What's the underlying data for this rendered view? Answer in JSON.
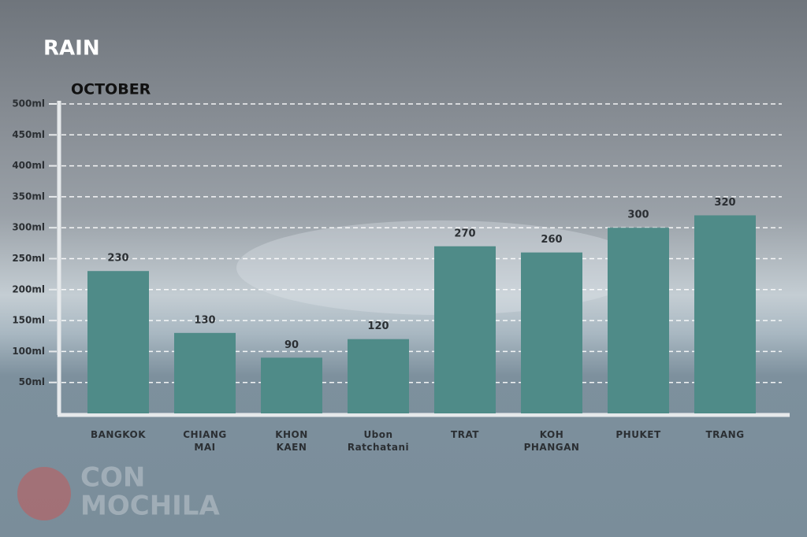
{
  "chart_data": {
    "type": "bar",
    "title": "RAIN",
    "subtitle": "OCTOBER",
    "categories": [
      "BANGKOK",
      "CHIANG MAI",
      "KHON KAEN",
      "Ubon Ratchatani",
      "TRAT",
      "KOH PHANGAN",
      "PHUKET",
      "TRANG"
    ],
    "values": [
      230,
      130,
      90,
      120,
      270,
      260,
      300,
      320
    ],
    "color": "#4f8b88",
    "ylim": [
      0,
      500
    ],
    "yticks": [
      {
        "value": 50,
        "label": "50ml"
      },
      {
        "value": 100,
        "label": "100ml"
      },
      {
        "value": 150,
        "label": "150ml"
      },
      {
        "value": 200,
        "label": "200ml"
      },
      {
        "value": 250,
        "label": "250ml"
      },
      {
        "value": 300,
        "label": "300ml"
      },
      {
        "value": 350,
        "label": "350ml"
      },
      {
        "value": 400,
        "label": "400ml"
      },
      {
        "value": 450,
        "label": "450ml"
      },
      {
        "value": 500,
        "label": "500ml"
      }
    ],
    "grid": true,
    "brand": [
      "CON",
      "MOCHILA"
    ]
  }
}
